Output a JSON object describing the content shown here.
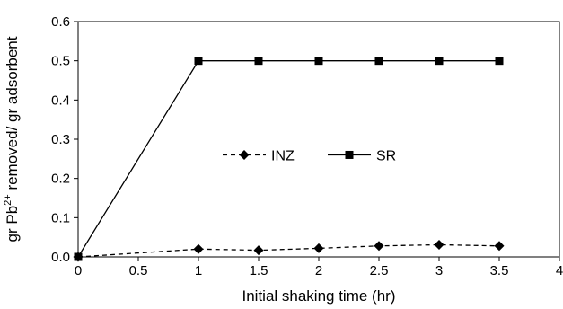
{
  "chart_data": {
    "type": "line",
    "xlabel": "Initial  shaking time (hr)",
    "ylabel": {
      "prefix": "gr Pb",
      "sup": "2+",
      "suffix": " removed/ gr adsorbent"
    },
    "xlim": [
      0,
      4
    ],
    "ylim": [
      0,
      0.6
    ],
    "xticks": [
      "0",
      "0.5",
      "1",
      "1.5",
      "2",
      "2.5",
      "3",
      "3.5",
      "4"
    ],
    "yticks": [
      "0.0",
      "0.1",
      "0.2",
      "0.3",
      "0.4",
      "0.5",
      "0.6"
    ],
    "grid": false,
    "legend": "center",
    "series": [
      {
        "name": "INZ",
        "marker": "diamond",
        "line": "dashed",
        "color": "#000000",
        "x": [
          0,
          1,
          1.5,
          2,
          2.5,
          3,
          3.5
        ],
        "y": [
          0.0,
          0.02,
          0.017,
          0.022,
          0.028,
          0.031,
          0.028
        ]
      },
      {
        "name": "SR",
        "marker": "square",
        "line": "solid",
        "color": "#000000",
        "x": [
          0,
          1,
          1.5,
          2,
          2.5,
          3,
          3.5
        ],
        "y": [
          0.0,
          0.5,
          0.5,
          0.5,
          0.5,
          0.5,
          0.5
        ]
      }
    ]
  }
}
